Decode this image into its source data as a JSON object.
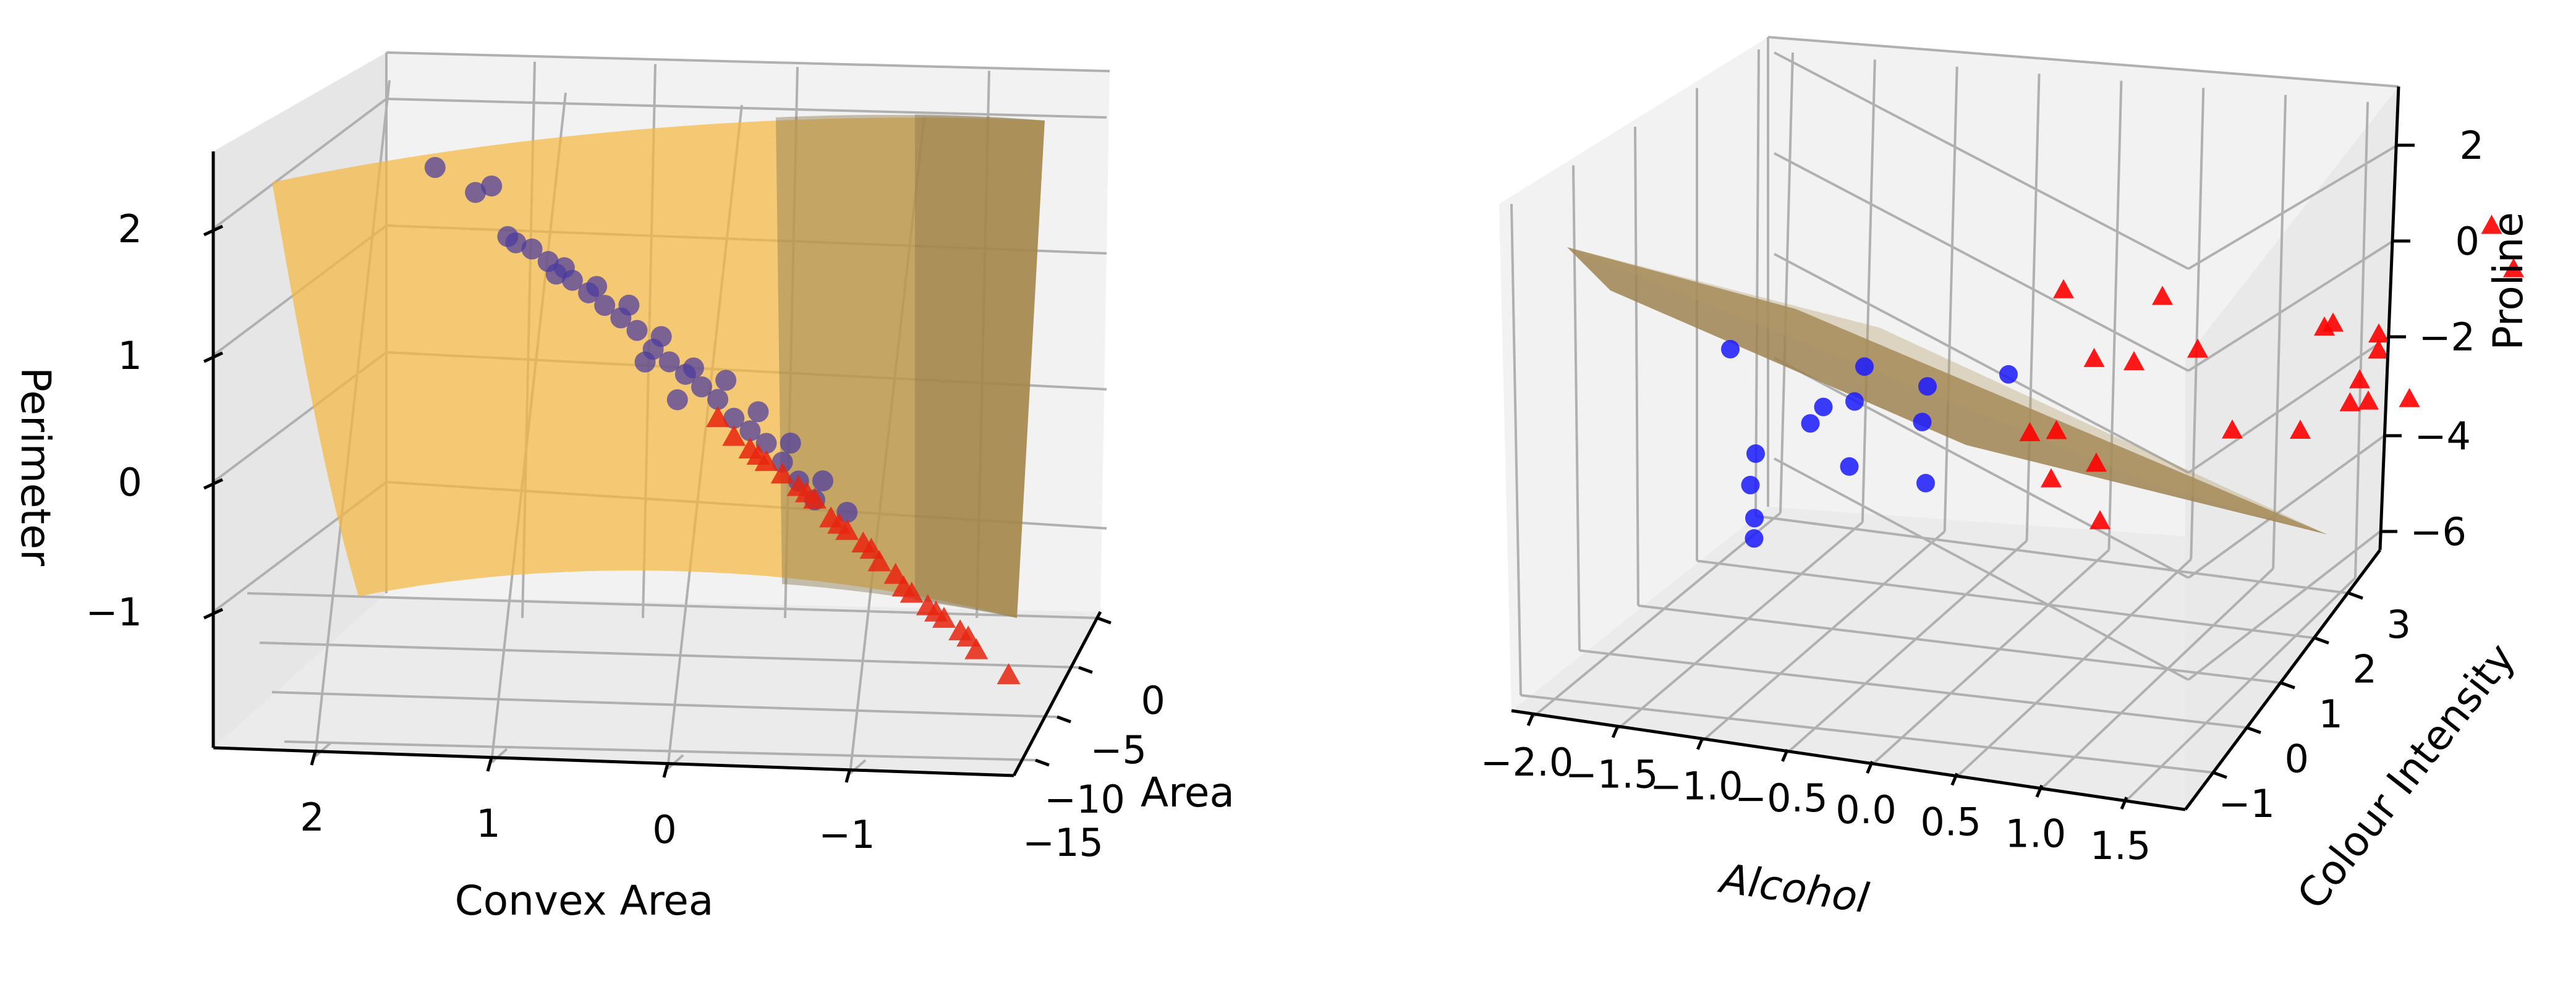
{
  "chart_data": [
    {
      "type": "scatter",
      "title": "",
      "subtitle": "",
      "xlabel": "Convex Area",
      "ylabel": "Area",
      "zlabel": "Perimeter",
      "x_ticks": [
        "2",
        "1",
        "0",
        "−1"
      ],
      "y_ticks": [
        "0",
        "−5",
        "−10",
        "−15"
      ],
      "z_ticks": [
        "2",
        "1",
        "0",
        "−1"
      ],
      "xlim": [
        -1.8,
        2.6
      ],
      "ylim": [
        -18,
        3
      ],
      "zlim": [
        -1.8,
        2.6
      ],
      "grid": true,
      "legend": "none",
      "surface": {
        "kind": "curved decision surface",
        "color": "#f5b942",
        "shade_color": "#8c7a52"
      },
      "series": [
        {
          "marker": "circle",
          "color": "#4b3aa0",
          "points": [
            [
              2.05,
              -1,
              2.55
            ],
            [
              1.8,
              -1,
              2.35
            ],
            [
              1.7,
              -1,
              2.4
            ],
            [
              1.6,
              -1,
              2.0
            ],
            [
              1.55,
              -1,
              1.95
            ],
            [
              1.45,
              -1,
              1.9
            ],
            [
              1.35,
              -1,
              1.8
            ],
            [
              1.3,
              -1,
              1.7
            ],
            [
              1.2,
              -1,
              1.65
            ],
            [
              1.1,
              -1,
              1.55
            ],
            [
              1.0,
              -1,
              1.45
            ],
            [
              0.9,
              -1,
              1.35
            ],
            [
              0.8,
              -1,
              1.25
            ],
            [
              0.7,
              -1,
              1.1
            ],
            [
              0.6,
              -1,
              1.0
            ],
            [
              0.5,
              -1,
              0.9
            ],
            [
              0.4,
              -1,
              0.8
            ],
            [
              0.3,
              -1,
              0.7
            ],
            [
              0.2,
              -1,
              0.55
            ],
            [
              0.1,
              -1,
              0.45
            ],
            [
              0.0,
              -1,
              0.35
            ],
            [
              -0.1,
              -1,
              0.2
            ],
            [
              -0.2,
              -1,
              0.05
            ],
            [
              -0.3,
              -1,
              -0.1
            ],
            [
              1.25,
              -1,
              1.75
            ],
            [
              1.05,
              -1,
              1.6
            ],
            [
              0.85,
              -1,
              1.45
            ],
            [
              0.65,
              -1,
              1.2
            ],
            [
              0.45,
              -1,
              0.95
            ],
            [
              0.25,
              -1,
              0.85
            ],
            [
              0.05,
              -1,
              0.6
            ],
            [
              -0.15,
              -1,
              0.35
            ],
            [
              -0.35,
              -1,
              0.05
            ],
            [
              -0.5,
              -1,
              -0.2
            ],
            [
              0.75,
              -1,
              1.0
            ],
            [
              0.55,
              -1,
              0.7
            ]
          ]
        },
        {
          "marker": "triangle",
          "color": "#e8250f",
          "points": [
            [
              0.3,
              -1,
              0.55
            ],
            [
              0.2,
              -1,
              0.4
            ],
            [
              0.1,
              -1,
              0.3
            ],
            [
              0.0,
              -1,
              0.2
            ],
            [
              -0.1,
              -1,
              0.1
            ],
            [
              -0.2,
              -1,
              0.0
            ],
            [
              -0.3,
              -1,
              -0.1
            ],
            [
              -0.4,
              -1,
              -0.25
            ],
            [
              -0.5,
              -1,
              -0.35
            ],
            [
              -0.6,
              -1,
              -0.45
            ],
            [
              -0.7,
              -1,
              -0.6
            ],
            [
              -0.8,
              -1,
              -0.7
            ],
            [
              -0.9,
              -1,
              -0.85
            ],
            [
              -1.0,
              -1,
              -0.95
            ],
            [
              -1.1,
              -1,
              -1.05
            ],
            [
              -1.2,
              -1,
              -1.15
            ],
            [
              -0.25,
              -1,
              -0.05
            ],
            [
              -0.45,
              -1,
              -0.3
            ],
            [
              -0.65,
              -1,
              -0.5
            ],
            [
              -0.85,
              -1,
              -0.8
            ],
            [
              -1.05,
              -1,
              -1.0
            ],
            [
              -1.25,
              -1,
              -1.2
            ],
            [
              0.05,
              -1,
              0.25
            ],
            [
              -1.3,
              -1,
              -1.3
            ],
            [
              -1.5,
              -1,
              -1.5
            ]
          ]
        }
      ]
    },
    {
      "type": "scatter",
      "title": "",
      "subtitle": "",
      "xlabel": "Alcohol",
      "ylabel": "Colour Intensity",
      "zlabel": "Proline",
      "x_ticks": [
        "−2.0",
        "−1.5",
        "−1.0",
        "−0.5",
        "0.0",
        "0.5",
        "1.0",
        "1.5"
      ],
      "y_ticks": [
        "−1",
        "0",
        "1",
        "2",
        "3"
      ],
      "z_ticks": [
        "2",
        "0",
        "−2",
        "−4",
        "−6"
      ],
      "xlim": [
        -2.2,
        1.8
      ],
      "ylim": [
        -1.8,
        3.8
      ],
      "zlim": [
        -6.5,
        3
      ],
      "grid": true,
      "legend": "none",
      "surface": {
        "kind": "decision plane",
        "color": "#a08452"
      },
      "series": [
        {
          "marker": "circle",
          "color": "#1a1aff",
          "points": [
            [
              -2.1,
              1.0,
              -1.0
            ],
            [
              -1.7,
              0.0,
              -2.5
            ],
            [
              -1.6,
              -0.5,
              -2.8
            ],
            [
              -1.5,
              -0.8,
              -3.3
            ],
            [
              -1.4,
              0.3,
              -1.5
            ],
            [
              -1.3,
              0.8,
              -0.9
            ],
            [
              -1.2,
              0.2,
              -1.2
            ],
            [
              -1.1,
              -0.3,
              -2.3
            ],
            [
              -1.0,
              1.0,
              -1.4
            ],
            [
              -0.9,
              0.5,
              -1.8
            ],
            [
              -0.7,
              -0.2,
              -2.6
            ],
            [
              -0.6,
              1.2,
              -1.1
            ],
            [
              -1.55,
              0.6,
              -2.2
            ],
            [
              -1.45,
              -1.0,
              -3.6
            ]
          ]
        },
        {
          "marker": "triangle",
          "color": "#ff0000",
          "points": [
            [
              -0.5,
              2.0,
              0.3
            ],
            [
              -0.2,
              1.5,
              -0.8
            ],
            [
              0.0,
              2.2,
              0.2
            ],
            [
              0.1,
              1.2,
              -0.5
            ],
            [
              0.3,
              1.8,
              -0.6
            ],
            [
              -0.3,
              0.5,
              -1.8
            ],
            [
              -0.1,
              0.3,
              -1.5
            ],
            [
              0.0,
              -0.2,
              -2.2
            ],
            [
              0.2,
              0.0,
              -1.9
            ],
            [
              0.35,
              -0.5,
              -2.8
            ],
            [
              0.8,
              2.6,
              -0.5
            ],
            [
              0.9,
              2.4,
              -0.2
            ],
            [
              1.0,
              3.0,
              -0.9
            ],
            [
              1.05,
              2.8,
              -1.1
            ],
            [
              1.1,
              2.2,
              -1.3
            ],
            [
              1.2,
              2.0,
              -1.6
            ],
            [
              1.3,
              2.5,
              -1.9
            ],
            [
              1.5,
              3.5,
              1.5
            ],
            [
              1.7,
              3.2,
              0.8
            ],
            [
              0.95,
              1.5,
              -2.0
            ],
            [
              1.15,
              1.8,
              -1.5
            ],
            [
              0.7,
              1.0,
              -1.7
            ]
          ]
        }
      ]
    }
  ]
}
